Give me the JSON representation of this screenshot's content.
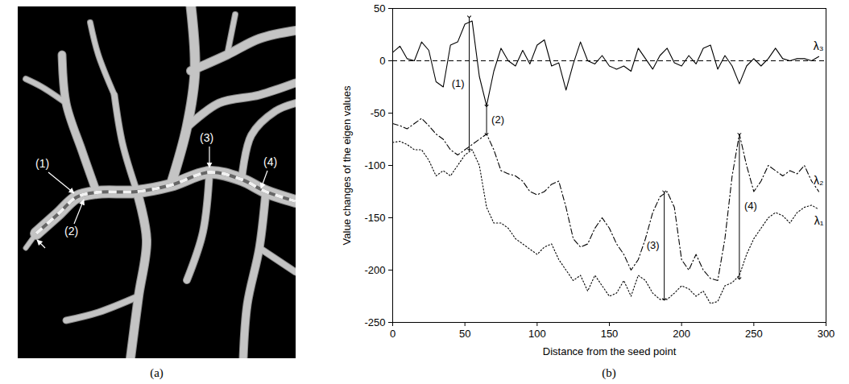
{
  "chart_data": [
    {
      "type": "image",
      "caption": "(a)",
      "annotations": [
        "(1)",
        "(2)",
        "(3)",
        "(4)"
      ]
    },
    {
      "type": "line",
      "caption": "(b)",
      "x_label": "Distance from the seed point",
      "y_label": "Value changes of the eigen values",
      "xlim": [
        0,
        300
      ],
      "xticks": [
        0,
        50,
        100,
        150,
        200,
        250,
        300
      ],
      "ylim": [
        -250,
        50
      ],
      "yticks": [
        -250,
        -200,
        -150,
        -100,
        -50,
        0,
        50
      ],
      "reference_y": 0,
      "x": [
        0,
        5,
        10,
        15,
        20,
        25,
        30,
        35,
        40,
        45,
        50,
        55,
        60,
        65,
        70,
        75,
        80,
        85,
        90,
        95,
        100,
        105,
        110,
        115,
        120,
        125,
        130,
        135,
        140,
        145,
        150,
        155,
        160,
        165,
        170,
        175,
        180,
        185,
        190,
        195,
        200,
        205,
        210,
        215,
        220,
        225,
        230,
        235,
        240,
        245,
        250,
        255,
        260,
        265,
        270,
        275,
        280,
        285,
        290,
        295
      ],
      "series": [
        {
          "name": "λ₃",
          "color": "#000000",
          "line_style": "solid",
          "values": [
            8,
            14,
            2,
            0,
            18,
            10,
            -20,
            -25,
            15,
            18,
            35,
            38,
            -15,
            -43,
            -10,
            12,
            0,
            -5,
            10,
            -3,
            15,
            20,
            -5,
            -2,
            -28,
            -3,
            18,
            0,
            -3,
            5,
            -5,
            -8,
            -5,
            -10,
            12,
            2,
            -8,
            5,
            12,
            -2,
            -5,
            5,
            -3,
            12,
            15,
            -8,
            5,
            -5,
            -22,
            -5,
            2,
            -5,
            2,
            12,
            2,
            0,
            2,
            2,
            0,
            4
          ]
        },
        {
          "name": "λ₂",
          "color": "#000000",
          "line_style": "dashdot",
          "values": [
            -60,
            -62,
            -65,
            -60,
            -55,
            -62,
            -70,
            -75,
            -85,
            -90,
            -85,
            -80,
            -75,
            -70,
            -85,
            -105,
            -108,
            -110,
            -115,
            -125,
            -128,
            -125,
            -118,
            -115,
            -140,
            -170,
            -178,
            -175,
            -160,
            -150,
            -160,
            -175,
            -185,
            -200,
            -190,
            -170,
            -145,
            -130,
            -125,
            -140,
            -190,
            -200,
            -185,
            -200,
            -208,
            -210,
            -170,
            -110,
            -70,
            -100,
            -125,
            -115,
            -100,
            -105,
            -110,
            -105,
            -108,
            -100,
            -115,
            -125
          ]
        },
        {
          "name": "λ₁",
          "color": "#000000",
          "line_style": "dotted",
          "values": [
            -78,
            -77,
            -80,
            -85,
            -85,
            -95,
            -110,
            -105,
            -110,
            -100,
            -90,
            -85,
            -100,
            -140,
            -155,
            -155,
            -160,
            -170,
            -175,
            -180,
            -185,
            -178,
            -175,
            -190,
            -200,
            -210,
            -205,
            -220,
            -205,
            -215,
            -225,
            -222,
            -210,
            -225,
            -205,
            -210,
            -222,
            -228,
            -228,
            -222,
            -215,
            -218,
            -225,
            -220,
            -232,
            -230,
            -215,
            -212,
            -205,
            -185,
            -170,
            -160,
            -150,
            -145,
            -148,
            -155,
            -145,
            -140,
            -138,
            -142
          ]
        }
      ],
      "annotations": [
        {
          "label": "(1)",
          "x": 53,
          "y1": 42,
          "y2": -85
        },
        {
          "label": "(2)",
          "x": 65,
          "y1": -43,
          "y2": -70
        },
        {
          "label": "(3)",
          "x": 188,
          "y1": -125,
          "y2": -228
        },
        {
          "label": "(4)",
          "x": 240,
          "y1": -70,
          "y2": -208
        }
      ]
    }
  ]
}
